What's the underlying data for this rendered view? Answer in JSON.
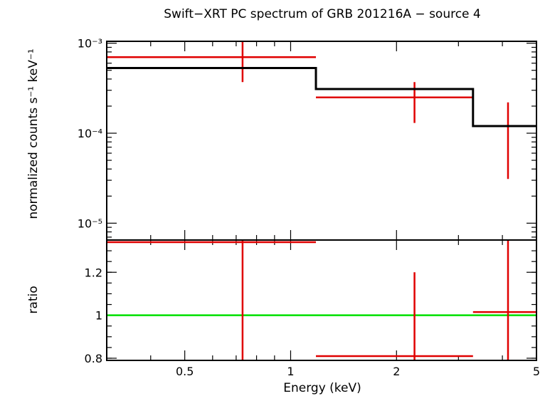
{
  "chart_data": {
    "type": "scatter",
    "title": "Swift−XRT PC spectrum of GRB 201216A − source 4",
    "xlabel": "Energy (keV)",
    "x_scale": "log",
    "xlim": [
      0.3,
      5
    ],
    "x_ticks": [
      {
        "value": 0.5,
        "label": "0.5"
      },
      {
        "value": 1,
        "label": "1"
      },
      {
        "value": 2,
        "label": "2"
      },
      {
        "value": 5,
        "label": "5"
      }
    ],
    "panels": [
      {
        "id": "spectrum",
        "ylabel": "normalized counts s⁻¹ keV⁻¹",
        "y_scale": "log",
        "ylim": [
          6.5e-06,
          0.00105
        ],
        "y_ticks": [
          {
            "value": 0.001,
            "label": "10⁻³"
          },
          {
            "value": 0.0001,
            "label": "10⁻⁴"
          },
          {
            "value": 1e-05,
            "label": "10⁻⁵"
          }
        ],
        "series": [
          {
            "name": "data",
            "color": "#e00000",
            "points": [
              {
                "x_lo": 0.3,
                "x_hi": 1.18,
                "x": 0.73,
                "y": 0.0007,
                "y_lo": 0.00037,
                "y_hi": 0.00105
              },
              {
                "x_lo": 1.18,
                "x_hi": 3.3,
                "x": 2.25,
                "y": 0.00025,
                "y_lo": 0.00013,
                "y_hi": 0.00037
              },
              {
                "x_lo": 3.3,
                "x_hi": 5.0,
                "x": 4.15,
                "y": null,
                "y_lo": 3.1e-05,
                "y_hi": 0.00022
              }
            ]
          },
          {
            "name": "model",
            "color": "#000000",
            "steps": [
              {
                "x_lo": 0.3,
                "x_hi": 1.18,
                "y": 0.00053
              },
              {
                "x_lo": 1.18,
                "x_hi": 3.3,
                "y": 0.00031
              },
              {
                "x_lo": 3.3,
                "x_hi": 5.0,
                "y": 0.00012
              }
            ]
          }
        ]
      },
      {
        "id": "ratio",
        "ylabel": "ratio",
        "y_scale": "linear",
        "ylim": [
          0.79,
          1.35
        ],
        "y_ticks": [
          {
            "value": 0.8,
            "label": "0.8"
          },
          {
            "value": 1,
            "label": "1"
          },
          {
            "value": 1.2,
            "label": "1.2"
          }
        ],
        "reference": {
          "y": 1,
          "color": "#00e000"
        },
        "series": [
          {
            "name": "ratio",
            "color": "#e00000",
            "points": [
              {
                "x_lo": 0.3,
                "x_hi": 1.18,
                "x": 0.73,
                "y": 1.34,
                "y_lo": 0.79,
                "y_hi": 1.35
              },
              {
                "x_lo": 1.18,
                "x_hi": 3.3,
                "x": 2.25,
                "y": 0.81,
                "y_lo": 0.79,
                "y_hi": 1.2
              },
              {
                "x_lo": 3.3,
                "x_hi": 5.0,
                "x": 4.15,
                "y": 1.015,
                "y_lo": 0.79,
                "y_hi": 1.35
              }
            ]
          }
        ]
      }
    ]
  }
}
